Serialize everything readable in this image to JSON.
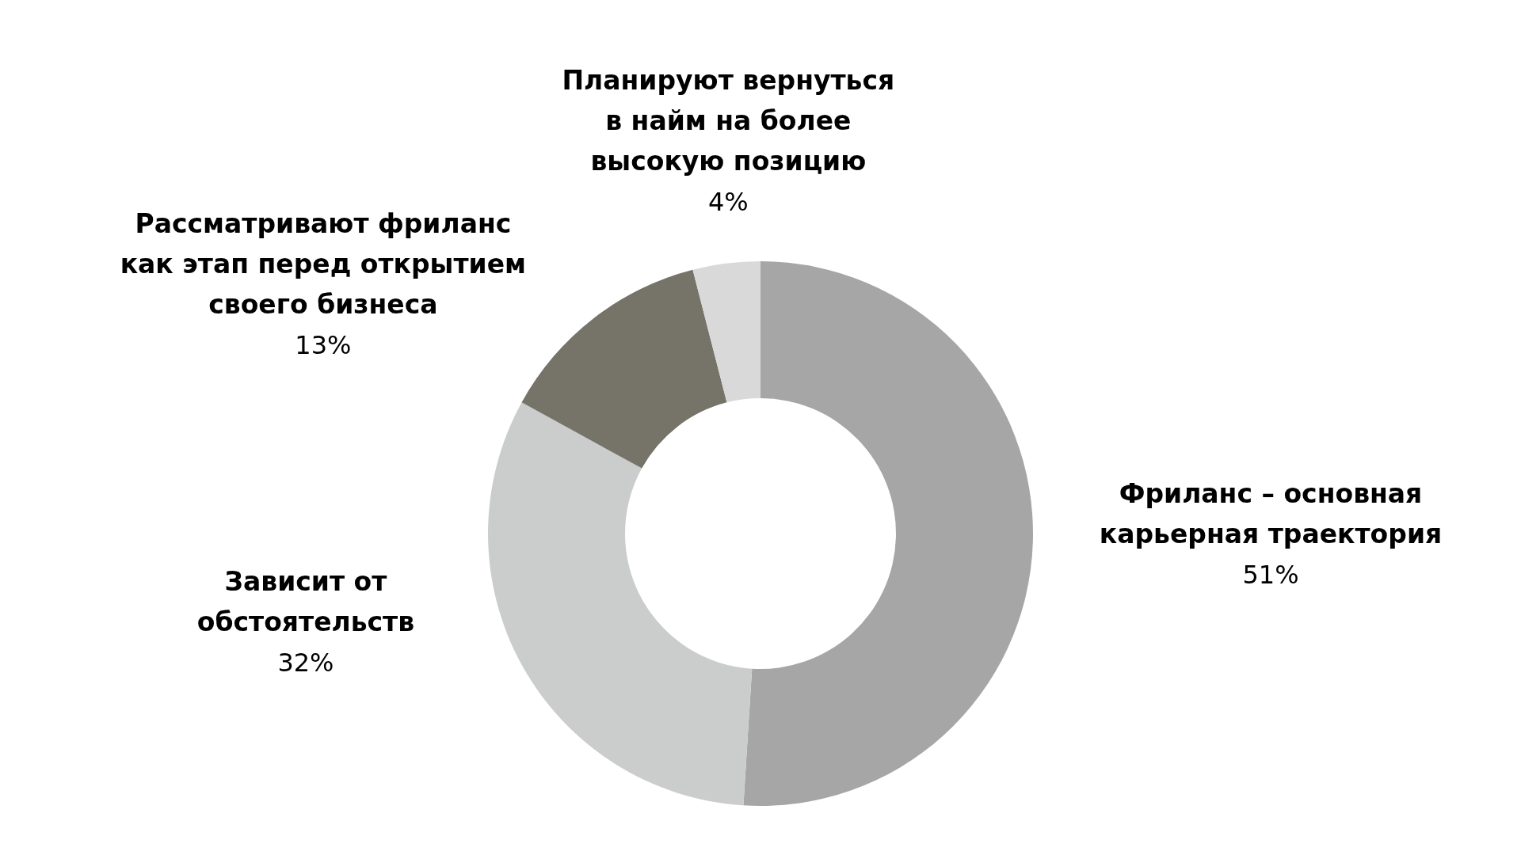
{
  "chart_data": {
    "type": "donut",
    "categories": [
      "Фриланс – основная\nкарьерная траектория",
      "Зависит от\nобстоятельств",
      "Рассматривают фриланс\nкак этап перед открытием\nсвоего бизнеса",
      "Планируют вернуться\nв найм на более\nвысокую позицию"
    ],
    "values": [
      51,
      32,
      13,
      4
    ],
    "colors": [
      "#a6a6a6",
      "#cbcdcc",
      "#767368",
      "#d9d9d9"
    ],
    "value_labels": [
      "51%",
      "32%",
      "13%",
      "4%"
    ]
  }
}
